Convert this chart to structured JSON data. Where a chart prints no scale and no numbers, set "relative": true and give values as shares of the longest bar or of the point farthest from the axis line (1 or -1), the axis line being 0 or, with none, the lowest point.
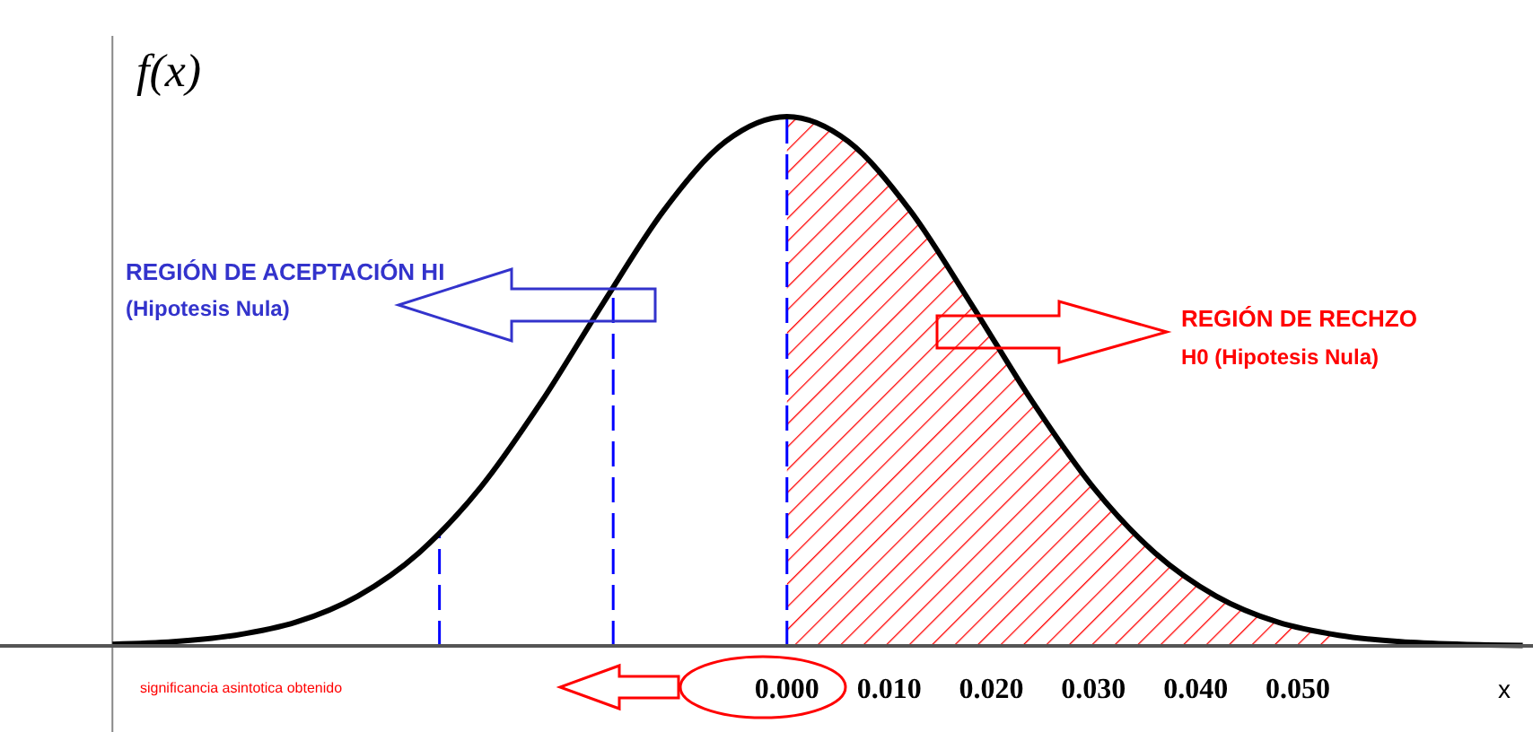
{
  "chart_data": {
    "type": "line",
    "relative": true,
    "xlabel": "x",
    "ylabel": "f(x)",
    "xlim": [
      -0.077,
      0.073
    ],
    "xticks": [
      {
        "value": 0,
        "label": "0.000"
      },
      {
        "value": 0.01,
        "label": "0.010"
      },
      {
        "value": 0.02,
        "label": "0.020"
      },
      {
        "value": 0.03,
        "label": "0.030"
      },
      {
        "value": 0.04,
        "label": "0.040"
      },
      {
        "value": 0.05,
        "label": "0.050"
      }
    ],
    "series": [
      {
        "type": "area",
        "color": "#ff0000",
        "x": [
          0,
          0.006,
          0.012,
          0.018,
          0.024,
          0.03,
          0.036,
          0.042,
          0.048,
          0.054
        ],
        "values": [
          1,
          0.953,
          0.824,
          0.647,
          0.462,
          0.299,
          0.176,
          0.094,
          0.045,
          0.02
        ]
      },
      {
        "color": "#000000",
        "x": [
          -0.066,
          -0.06,
          -0.054,
          -0.048,
          -0.042,
          -0.036,
          -0.03,
          -0.024,
          -0.018,
          -0.012,
          -0.006,
          0,
          0.006,
          0.012,
          0.018,
          0.024,
          0.03,
          0.036,
          0.042,
          0.048,
          0.054,
          0.06,
          0.066,
          0.072
        ],
        "values": [
          0.003,
          0.008,
          0.02,
          0.045,
          0.094,
          0.176,
          0.299,
          0.462,
          0.647,
          0.824,
          0.953,
          1,
          0.953,
          0.824,
          0.647,
          0.462,
          0.299,
          0.176,
          0.094,
          0.045,
          0.02,
          0.008,
          0.003,
          0.001
        ]
      }
    ],
    "ref_lines": [
      {
        "axis": "x",
        "value": -0.066,
        "color": "#888888",
        "line_style": "solid"
      },
      {
        "axis": "x",
        "value": 0,
        "color": "#0000ff",
        "line_style": "dashed"
      },
      {
        "axis": "x",
        "value": -0.017,
        "color": "#0000ff",
        "line_style": "dashed"
      },
      {
        "axis": "x",
        "value": -0.034,
        "color": "#0000ff",
        "line_style": "dashed"
      }
    ],
    "annotations": [
      "REGIÓN DE ACEPTACIÓN HI",
      "(Hipotesis Nula)",
      "REGIÓN DE RECHZO",
      "H0 (Hipotesis Nula)",
      "significancia asintotica obtenido"
    ]
  }
}
